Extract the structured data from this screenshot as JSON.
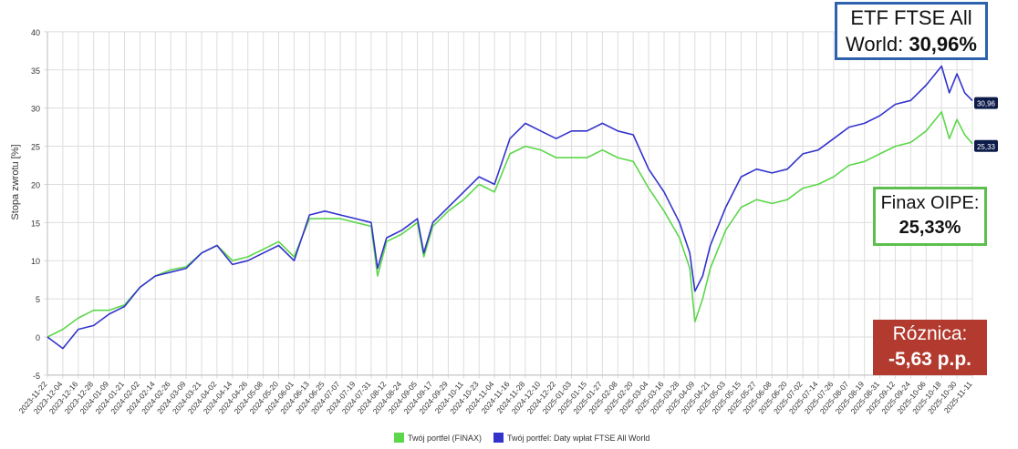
{
  "chart_data": {
    "type": "line",
    "ylabel": "Stopa zwrotu [%]",
    "ylim": [
      -5,
      40
    ],
    "yticks": [
      -5,
      0,
      5,
      10,
      15,
      20,
      25,
      30,
      35,
      40
    ],
    "grid": true,
    "legend_placement": "bottom",
    "xtick_labels": [
      "2023-11-22",
      "2023-12-04",
      "2023-12-16",
      "2023-12-28",
      "2024-01-09",
      "2024-01-21",
      "2024-02-02",
      "2024-02-14",
      "2024-02-26",
      "2024-03-09",
      "2024-03-21",
      "2024-04-02",
      "2024-04-14",
      "2024-04-26",
      "2024-05-08",
      "2024-05-20",
      "2024-06-01",
      "2024-06-13",
      "2024-06-25",
      "2024-07-07",
      "2024-07-19",
      "2024-07-31",
      "2024-08-12",
      "2024-08-24",
      "2024-09-05",
      "2024-09-17",
      "2024-09-29",
      "2024-10-11",
      "2024-10-23",
      "2024-11-04",
      "2024-11-16",
      "2024-11-28",
      "2024-12-10",
      "2024-12-22",
      "2025-01-03",
      "2025-01-15",
      "2025-01-27",
      "2025-02-08",
      "2025-02-20",
      "2025-03-04",
      "2025-03-16",
      "2025-03-28",
      "2025-04-09",
      "2025-04-21",
      "2025-05-03",
      "2025-05-15",
      "2025-05-27",
      "2025-06-08",
      "2025-06-20",
      "2025-07-02",
      "2025-07-14",
      "2025-07-26",
      "2025-08-07",
      "2025-08-19",
      "2025-08-31",
      "2025-09-12",
      "2025-09-24",
      "2025-10-06",
      "2025-10-18",
      "2025-10-30",
      "2025-11-11"
    ],
    "x": [
      "2023-11-22",
      "2023-12-04",
      "2023-12-16",
      "2023-12-28",
      "2024-01-09",
      "2024-01-21",
      "2024-02-02",
      "2024-02-14",
      "2024-02-26",
      "2024-03-09",
      "2024-03-21",
      "2024-04-02",
      "2024-04-14",
      "2024-04-26",
      "2024-05-08",
      "2024-05-20",
      "2024-06-01",
      "2024-06-13",
      "2024-06-25",
      "2024-07-07",
      "2024-07-19",
      "2024-07-31",
      "2024-08-05",
      "2024-08-12",
      "2024-08-24",
      "2024-09-05",
      "2024-09-10",
      "2024-09-17",
      "2024-09-29",
      "2024-10-11",
      "2024-10-23",
      "2024-11-04",
      "2024-11-16",
      "2024-11-28",
      "2024-12-10",
      "2024-12-22",
      "2025-01-03",
      "2025-01-15",
      "2025-01-27",
      "2025-02-08",
      "2025-02-20",
      "2025-03-04",
      "2025-03-16",
      "2025-03-28",
      "2025-04-05",
      "2025-04-09",
      "2025-04-15",
      "2025-04-21",
      "2025-05-03",
      "2025-05-15",
      "2025-05-27",
      "2025-06-08",
      "2025-06-20",
      "2025-07-02",
      "2025-07-14",
      "2025-07-26",
      "2025-08-07",
      "2025-08-19",
      "2025-08-31",
      "2025-09-12",
      "2025-09-24",
      "2025-10-06",
      "2025-10-18",
      "2025-10-24",
      "2025-10-30",
      "2025-11-05",
      "2025-11-11"
    ],
    "series": [
      {
        "name": "Twój portfel (FINAX)",
        "color": "#5cd64a",
        "end_label": "25,33",
        "values": [
          0,
          1,
          2.5,
          3.5,
          3.5,
          4.2,
          6.5,
          8,
          8.8,
          9.2,
          11,
          12,
          10,
          10.5,
          11.5,
          12.5,
          10.5,
          15.5,
          15.5,
          15.5,
          15,
          14.5,
          8,
          12.5,
          13.5,
          15,
          10.5,
          14.5,
          16.5,
          18,
          20,
          19,
          24,
          25,
          24.5,
          23.5,
          23.5,
          23.5,
          24.5,
          23.5,
          23,
          19.5,
          16.5,
          13,
          9,
          2,
          5,
          9,
          14,
          17,
          18,
          17.5,
          18,
          19.5,
          20,
          21,
          22.5,
          23,
          24,
          25,
          25.5,
          27,
          29.5,
          26,
          28.5,
          26.5,
          25.33
        ]
      },
      {
        "name": "Twój portfel: Daty wpłat FTSE All World",
        "color": "#3333cc",
        "end_label": "30,96",
        "values": [
          0,
          -1.5,
          1,
          1.5,
          3,
          4,
          6.5,
          8,
          8.5,
          9,
          11,
          12,
          9.5,
          10,
          11,
          12,
          10,
          16,
          16.5,
          16,
          15.5,
          15,
          9,
          13,
          14,
          15.5,
          11,
          15,
          17,
          19,
          21,
          20,
          26,
          28,
          27,
          26,
          27,
          27,
          28,
          27,
          26.5,
          22,
          19,
          15,
          11,
          6,
          8,
          12,
          17,
          21,
          22,
          21.5,
          22,
          24,
          24.5,
          26,
          27.5,
          28,
          29,
          30.5,
          31,
          33,
          35.5,
          32,
          34.5,
          32,
          30.96
        ]
      }
    ]
  },
  "annotations": {
    "etf_label": "ETF FTSE All World:",
    "etf_value": "30,96%",
    "finax_label": "Finax OIPE:",
    "finax_value": "25,33%",
    "diff_label": "Róznica:",
    "diff_value": "-5,63 p.p.",
    "colors": {
      "etf_border": "#2e62ad",
      "finax_border": "#5cbf4e",
      "diff_bg": "#b23a2f"
    }
  },
  "legend": [
    {
      "label": "Twój portfel (FINAX)",
      "color": "#5cd64a"
    },
    {
      "label": "Twój portfel: Daty wpłat FTSE All World",
      "color": "#3333cc"
    }
  ]
}
